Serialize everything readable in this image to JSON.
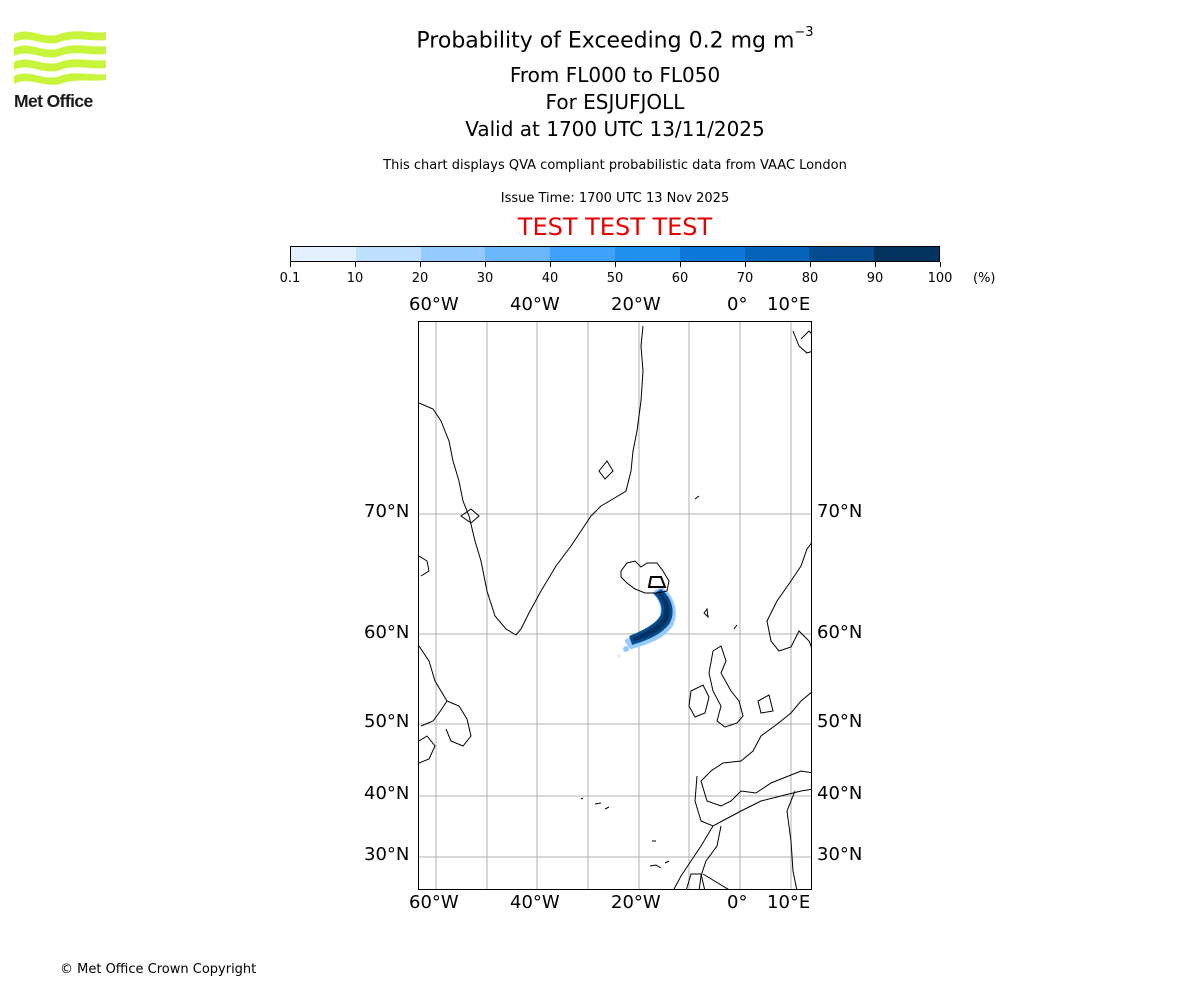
{
  "logo": {
    "name": "Met Office",
    "color": "#c8f53c"
  },
  "header": {
    "title_main": "Probability of Exceeding 0.2 mg m",
    "title_superscript": "−3",
    "levels": "From FL000 to FL050",
    "volcano": "For ESJUFJOLL",
    "valid": "Valid at 1700 UTC 13/11/2025",
    "description": "This chart displays QVA compliant probabilistic data from VAAC London",
    "issue_time": "Issue Time: 1700 UTC 13 Nov 2025",
    "test_banner": "TEST TEST TEST",
    "test_color": "#e60000"
  },
  "colorbar": {
    "unit": "(%)",
    "ticks": [
      "0.1",
      "10",
      "20",
      "30",
      "40",
      "50",
      "60",
      "70",
      "80",
      "90",
      "100"
    ],
    "colors": [
      "#e3f1fe",
      "#bfe0fd",
      "#95cafe",
      "#6cb6fc",
      "#3fa1fb",
      "#2090ef",
      "#0d78da",
      "#0463bb",
      "#044b8f",
      "#03335f"
    ]
  },
  "map": {
    "lon_labels": [
      "60°W",
      "40°W",
      "20°W",
      "0°",
      "10°E"
    ],
    "lat_labels": [
      "70°N",
      "60°N",
      "50°N",
      "40°N",
      "30°N"
    ]
  },
  "chart_data": {
    "type": "heatmap",
    "title": "Probability of Exceeding 0.2 mg m−3 — From FL000 to FL050 — For ESJUFJOLL — Valid at 1700 UTC 13/11/2025",
    "projection_extent": {
      "lon": [
        -65,
        13
      ],
      "lat": [
        25,
        80
      ]
    },
    "gridlines": {
      "lon": [
        -60,
        -50,
        -40,
        -30,
        -20,
        -10,
        0,
        10
      ],
      "lat": [
        70,
        60,
        50,
        40,
        30
      ]
    },
    "colorbar_bounds": [
      0.1,
      10,
      20,
      30,
      40,
      50,
      60,
      70,
      80,
      90,
      100
    ],
    "colorbar_unit": "%",
    "plume": {
      "description": "Ash probability plume extending from SE Iceland south-southwest, curving toward ~20°W 60°N",
      "source": {
        "lon": -16.6,
        "lat": 64.5
      },
      "max_probability_range": "90-100",
      "approx_extent": {
        "lon": [
          -22,
          -14
        ],
        "lat": [
          59,
          64.5
        ]
      }
    }
  },
  "footer": {
    "copyright": "© Met Office Crown Copyright"
  }
}
